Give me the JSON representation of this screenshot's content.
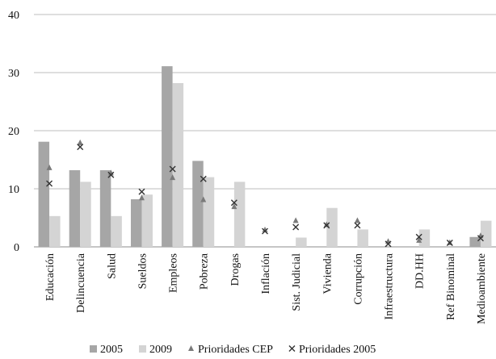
{
  "chart_data": {
    "type": "bar",
    "title": "",
    "xlabel": "",
    "ylabel": "",
    "ylim": [
      0,
      40
    ],
    "yticks": [
      0,
      10,
      20,
      30,
      40
    ],
    "grid": "horizontal",
    "legend_position": "bottom",
    "categories": [
      "Educación",
      "Delincuencia",
      "Salud",
      "Sueldos",
      "Empleos",
      "Pobreza",
      "Drogas",
      "Inflación",
      "Sist. Judicial",
      "Vivienda",
      "Corrupción",
      "Infraestructura",
      "DD.HH",
      "Ref Binominal",
      "Medioambiente"
    ],
    "series": [
      {
        "name": "2005",
        "kind": "bar",
        "color": "#a6a6a6",
        "values": [
          18.1,
          13.2,
          13.2,
          8.2,
          31.1,
          14.8,
          0,
          0,
          0,
          0,
          0,
          0,
          0,
          0,
          1.7
        ]
      },
      {
        "name": "2009",
        "kind": "bar",
        "color": "#d4d4d4",
        "values": [
          5.3,
          11.2,
          5.3,
          9.0,
          28.2,
          12.0,
          11.2,
          0,
          1.6,
          6.7,
          3.0,
          0,
          3.0,
          0,
          4.5
        ]
      },
      {
        "name": "Prioridades CEP",
        "kind": "marker",
        "marker": "triangle",
        "color": "#7a7a7a",
        "values": [
          13.7,
          18.0,
          12.8,
          8.5,
          12.0,
          8.2,
          7.0,
          3.0,
          4.6,
          3.9,
          4.6,
          1.0,
          1.2,
          0.8,
          2.0
        ]
      },
      {
        "name": "Prioridades 2005",
        "kind": "marker",
        "marker": "x",
        "color": "#333333",
        "values": [
          10.9,
          17.2,
          12.4,
          9.5,
          13.4,
          11.7,
          7.6,
          2.7,
          3.4,
          3.7,
          3.7,
          0.5,
          1.7,
          0.7,
          1.5
        ]
      }
    ]
  }
}
